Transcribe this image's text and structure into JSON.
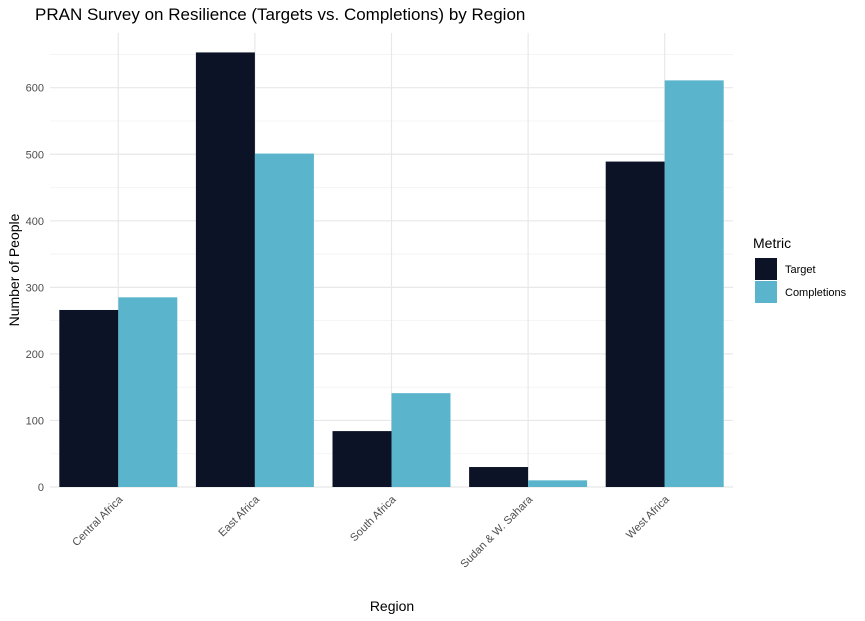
{
  "chart_data": {
    "type": "bar",
    "title": "PRAN Survey on Resilience (Targets vs. Completions) by Region",
    "xlabel": "Region",
    "ylabel": "Number of People",
    "categories": [
      "Central Africa",
      "East Africa",
      "South Africa",
      "Sudan & W. Sahara",
      "West Africa"
    ],
    "series": [
      {
        "name": "Target",
        "values": [
          266,
          653,
          84,
          30,
          489
        ],
        "color": "#0c1326"
      },
      {
        "name": "Completions",
        "values": [
          285,
          501,
          141,
          10,
          611
        ],
        "color": "#5ab4cc"
      }
    ],
    "ylim": [
      0,
      685
    ],
    "yticks": [
      0,
      100,
      200,
      300,
      400,
      500,
      600
    ],
    "grid": true,
    "legend": {
      "title": "Metric",
      "position": "right"
    }
  }
}
